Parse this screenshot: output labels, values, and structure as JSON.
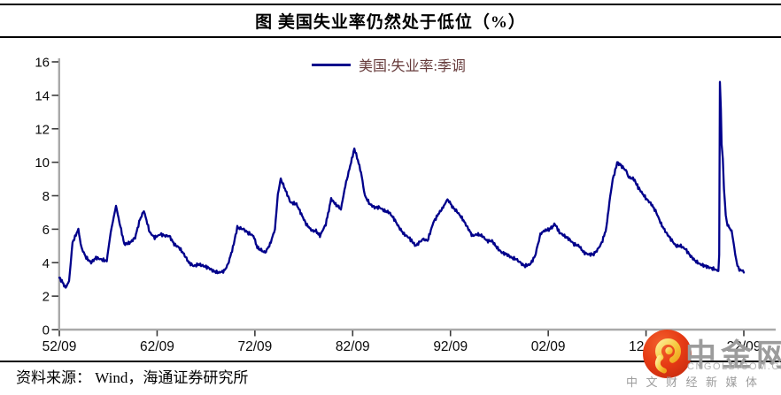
{
  "title": "图 美国失业率仍然处于低位（%）",
  "legend": {
    "label": "美国:失业率:季调"
  },
  "source": "资料来源： Wind，海通证券研究所",
  "watermark": {
    "name": "中金网",
    "domain": "CNGOLD.COM.CN",
    "tagline": "中文财经新媒体"
  },
  "colors": {
    "line": "#00008b",
    "axis": "#a9a9a9",
    "tick": "#3a3a3a",
    "axis_label": "#0a0a0a",
    "legend_text": "#663a3a",
    "watermark_text": "#9c9c9c",
    "logo_red": "#e23a17",
    "logo_gold": "#f6c93f"
  },
  "chart_data": {
    "type": "line",
    "title": "图 美国失业率仍然处于低位（%）",
    "xlabel": "",
    "ylabel": "",
    "ylim": [
      0,
      16
    ],
    "grid": false,
    "legend_position": "top-center",
    "y_ticks": [
      0,
      2,
      4,
      6,
      8,
      10,
      12,
      14,
      16
    ],
    "x_ticks": [
      "52/09",
      "62/09",
      "72/09",
      "82/09",
      "92/09",
      "02/09",
      "12/09",
      "22/09"
    ],
    "x_tick_years": [
      1952.75,
      1962.75,
      1972.75,
      1982.75,
      1992.75,
      2002.75,
      2012.75,
      2022.75
    ],
    "series": [
      {
        "name": "美国:失业率:季调",
        "color": "#00008b",
        "points": [
          [
            1952.75,
            3.1
          ],
          [
            1953.0,
            2.9
          ],
          [
            1953.4,
            2.5
          ],
          [
            1953.75,
            2.9
          ],
          [
            1954.1,
            5.2
          ],
          [
            1954.7,
            6.0
          ],
          [
            1955.0,
            4.9
          ],
          [
            1955.5,
            4.3
          ],
          [
            1956.0,
            4.0
          ],
          [
            1956.5,
            4.3
          ],
          [
            1957.0,
            4.2
          ],
          [
            1957.6,
            4.1
          ],
          [
            1958.0,
            5.8
          ],
          [
            1958.55,
            7.4
          ],
          [
            1958.9,
            6.4
          ],
          [
            1959.4,
            5.1
          ],
          [
            1960.0,
            5.2
          ],
          [
            1960.5,
            5.5
          ],
          [
            1961.0,
            6.6
          ],
          [
            1961.4,
            7.1
          ],
          [
            1962.0,
            5.8
          ],
          [
            1962.5,
            5.5
          ],
          [
            1963.1,
            5.7
          ],
          [
            1963.6,
            5.6
          ],
          [
            1964.0,
            5.6
          ],
          [
            1964.5,
            5.1
          ],
          [
            1965.0,
            4.9
          ],
          [
            1965.5,
            4.5
          ],
          [
            1966.0,
            4.0
          ],
          [
            1966.5,
            3.8
          ],
          [
            1967.0,
            3.9
          ],
          [
            1967.5,
            3.8
          ],
          [
            1968.0,
            3.7
          ],
          [
            1968.5,
            3.5
          ],
          [
            1969.0,
            3.4
          ],
          [
            1969.6,
            3.5
          ],
          [
            1970.0,
            3.9
          ],
          [
            1970.5,
            4.9
          ],
          [
            1970.95,
            6.1
          ],
          [
            1971.6,
            6.0
          ],
          [
            1972.0,
            5.8
          ],
          [
            1972.6,
            5.6
          ],
          [
            1973.0,
            4.9
          ],
          [
            1973.8,
            4.6
          ],
          [
            1974.3,
            5.1
          ],
          [
            1974.8,
            6.0
          ],
          [
            1975.1,
            8.1
          ],
          [
            1975.4,
            9.0
          ],
          [
            1975.9,
            8.3
          ],
          [
            1976.4,
            7.6
          ],
          [
            1977.0,
            7.5
          ],
          [
            1977.5,
            6.9
          ],
          [
            1978.0,
            6.3
          ],
          [
            1978.6,
            5.9
          ],
          [
            1979.0,
            5.9
          ],
          [
            1979.4,
            5.6
          ],
          [
            1980.0,
            6.3
          ],
          [
            1980.55,
            7.8
          ],
          [
            1981.0,
            7.5
          ],
          [
            1981.55,
            7.2
          ],
          [
            1982.0,
            8.6
          ],
          [
            1982.5,
            9.8
          ],
          [
            1982.92,
            10.8
          ],
          [
            1983.2,
            10.3
          ],
          [
            1983.6,
            9.4
          ],
          [
            1984.0,
            8.0
          ],
          [
            1984.5,
            7.5
          ],
          [
            1985.0,
            7.3
          ],
          [
            1985.5,
            7.3
          ],
          [
            1986.0,
            7.1
          ],
          [
            1986.5,
            7.0
          ],
          [
            1987.0,
            6.6
          ],
          [
            1987.5,
            6.1
          ],
          [
            1988.0,
            5.7
          ],
          [
            1988.5,
            5.5
          ],
          [
            1989.2,
            5.0
          ],
          [
            1989.7,
            5.3
          ],
          [
            1990.0,
            5.4
          ],
          [
            1990.4,
            5.3
          ],
          [
            1991.0,
            6.4
          ],
          [
            1991.5,
            6.9
          ],
          [
            1992.0,
            7.3
          ],
          [
            1992.45,
            7.8
          ],
          [
            1993.0,
            7.3
          ],
          [
            1993.5,
            7.0
          ],
          [
            1994.0,
            6.6
          ],
          [
            1994.5,
            6.1
          ],
          [
            1995.0,
            5.6
          ],
          [
            1995.5,
            5.7
          ],
          [
            1996.0,
            5.6
          ],
          [
            1996.5,
            5.3
          ],
          [
            1997.0,
            5.3
          ],
          [
            1997.5,
            4.9
          ],
          [
            1998.0,
            4.6
          ],
          [
            1998.5,
            4.5
          ],
          [
            1999.0,
            4.3
          ],
          [
            1999.5,
            4.2
          ],
          [
            2000.3,
            3.8
          ],
          [
            2000.9,
            3.9
          ],
          [
            2001.4,
            4.4
          ],
          [
            2001.95,
            5.7
          ],
          [
            2002.3,
            5.9
          ],
          [
            2002.9,
            6.0
          ],
          [
            2003.45,
            6.3
          ],
          [
            2003.9,
            5.8
          ],
          [
            2004.4,
            5.6
          ],
          [
            2004.9,
            5.4
          ],
          [
            2005.4,
            5.1
          ],
          [
            2005.9,
            5.0
          ],
          [
            2006.4,
            4.6
          ],
          [
            2006.9,
            4.5
          ],
          [
            2007.4,
            4.5
          ],
          [
            2007.95,
            4.9
          ],
          [
            2008.3,
            5.3
          ],
          [
            2008.7,
            6.1
          ],
          [
            2009.0,
            7.6
          ],
          [
            2009.35,
            9.0
          ],
          [
            2009.6,
            9.5
          ],
          [
            2009.8,
            10.0
          ],
          [
            2010.2,
            9.8
          ],
          [
            2010.7,
            9.5
          ],
          [
            2011.0,
            9.1
          ],
          [
            2011.5,
            9.0
          ],
          [
            2011.95,
            8.5
          ],
          [
            2012.3,
            8.2
          ],
          [
            2012.8,
            7.8
          ],
          [
            2013.3,
            7.5
          ],
          [
            2013.8,
            7.0
          ],
          [
            2014.3,
            6.3
          ],
          [
            2014.8,
            5.8
          ],
          [
            2015.3,
            5.4
          ],
          [
            2015.8,
            5.0
          ],
          [
            2016.3,
            5.0
          ],
          [
            2016.8,
            4.8
          ],
          [
            2017.3,
            4.4
          ],
          [
            2017.8,
            4.1
          ],
          [
            2018.3,
            3.9
          ],
          [
            2018.8,
            3.8
          ],
          [
            2019.3,
            3.7
          ],
          [
            2019.8,
            3.6
          ],
          [
            2020.15,
            3.5
          ],
          [
            2020.23,
            4.4
          ],
          [
            2020.3,
            14.8
          ],
          [
            2020.4,
            13.2
          ],
          [
            2020.48,
            11.1
          ],
          [
            2020.6,
            10.2
          ],
          [
            2020.72,
            8.4
          ],
          [
            2020.9,
            6.9
          ],
          [
            2021.0,
            6.4
          ],
          [
            2021.25,
            6.1
          ],
          [
            2021.5,
            5.9
          ],
          [
            2021.7,
            5.2
          ],
          [
            2021.95,
            4.2
          ],
          [
            2022.1,
            3.8
          ],
          [
            2022.3,
            3.6
          ],
          [
            2022.55,
            3.5
          ],
          [
            2022.75,
            3.5
          ]
        ]
      }
    ]
  }
}
